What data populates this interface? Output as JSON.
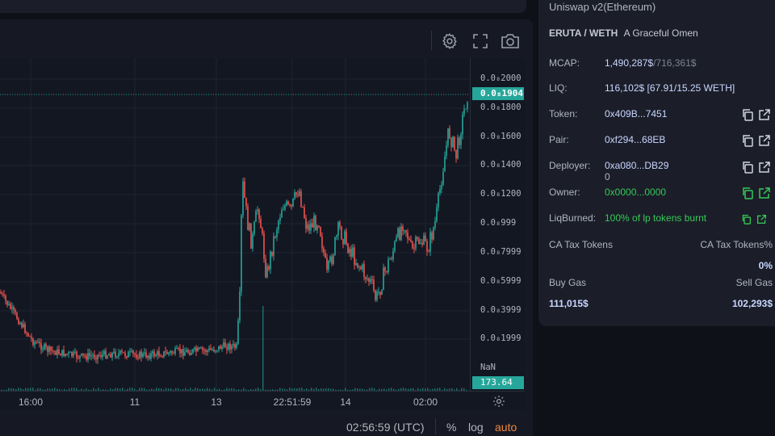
{
  "toolbar": {
    "icons": [
      "gear-icon",
      "fullscreen-icon",
      "camera-icon"
    ]
  },
  "chart_data": {
    "type": "line",
    "price_axis_labels": [
      "0.0₈2000",
      "0.0₈1800",
      "0.0₈1600",
      "0.0₈1400",
      "0.0₈1200",
      "0.0₈999",
      "0.0₈7999",
      "0.0₈5999",
      "0.0₈3999",
      "0.0₈1999",
      "NaN"
    ],
    "current_price_label": "0.0₈1904",
    "volume_label": "173.64",
    "time_labels": [
      "16:00",
      "11",
      "13",
      "22:51:59",
      "14",
      "02:00"
    ],
    "colors": {
      "up": "#26a69a",
      "down": "#ef5350",
      "price_tag": "#26a69a"
    }
  },
  "footer": {
    "clock": "02:56:59 (UTC)",
    "percent": "%",
    "log": "log",
    "auto": "auto"
  },
  "info": {
    "exchange": "Uniswap v2(Ethereum)",
    "pair_name": "ERUTA / WETH",
    "pair_desc": "A Graceful Omen",
    "mcap_label": "MCAP:",
    "mcap_value": "1,490,287$",
    "mcap_alt": "/716,361$",
    "liq_label": "LIQ:",
    "liq_value": "116,102$ [67.91/15.25 WETH]",
    "token_label": "Token:",
    "token_value": "0x409B...7451",
    "pair_label": "Pair:",
    "pair_value": "0xf294...68EB",
    "deployer_label": "Deployer:",
    "deployer_value": "0xa080...DB29",
    "deployer_sub": "0",
    "owner_label": "Owner:",
    "owner_value": "0x0000...0000",
    "liqburned_label": "LiqBurned:",
    "liqburned_value": "100% of lp tokens burnt",
    "ca_tax_tokens": "CA Tax Tokens",
    "ca_tax_tokens_pct": "CA Tax Tokens%",
    "ca_tax_tokens_pct_value": "0%",
    "buy_gas_label": "Buy Gas",
    "sell_gas_label": "Sell Gas",
    "buy_gas_value": "111,015$",
    "sell_gas_value": "102,293$"
  }
}
